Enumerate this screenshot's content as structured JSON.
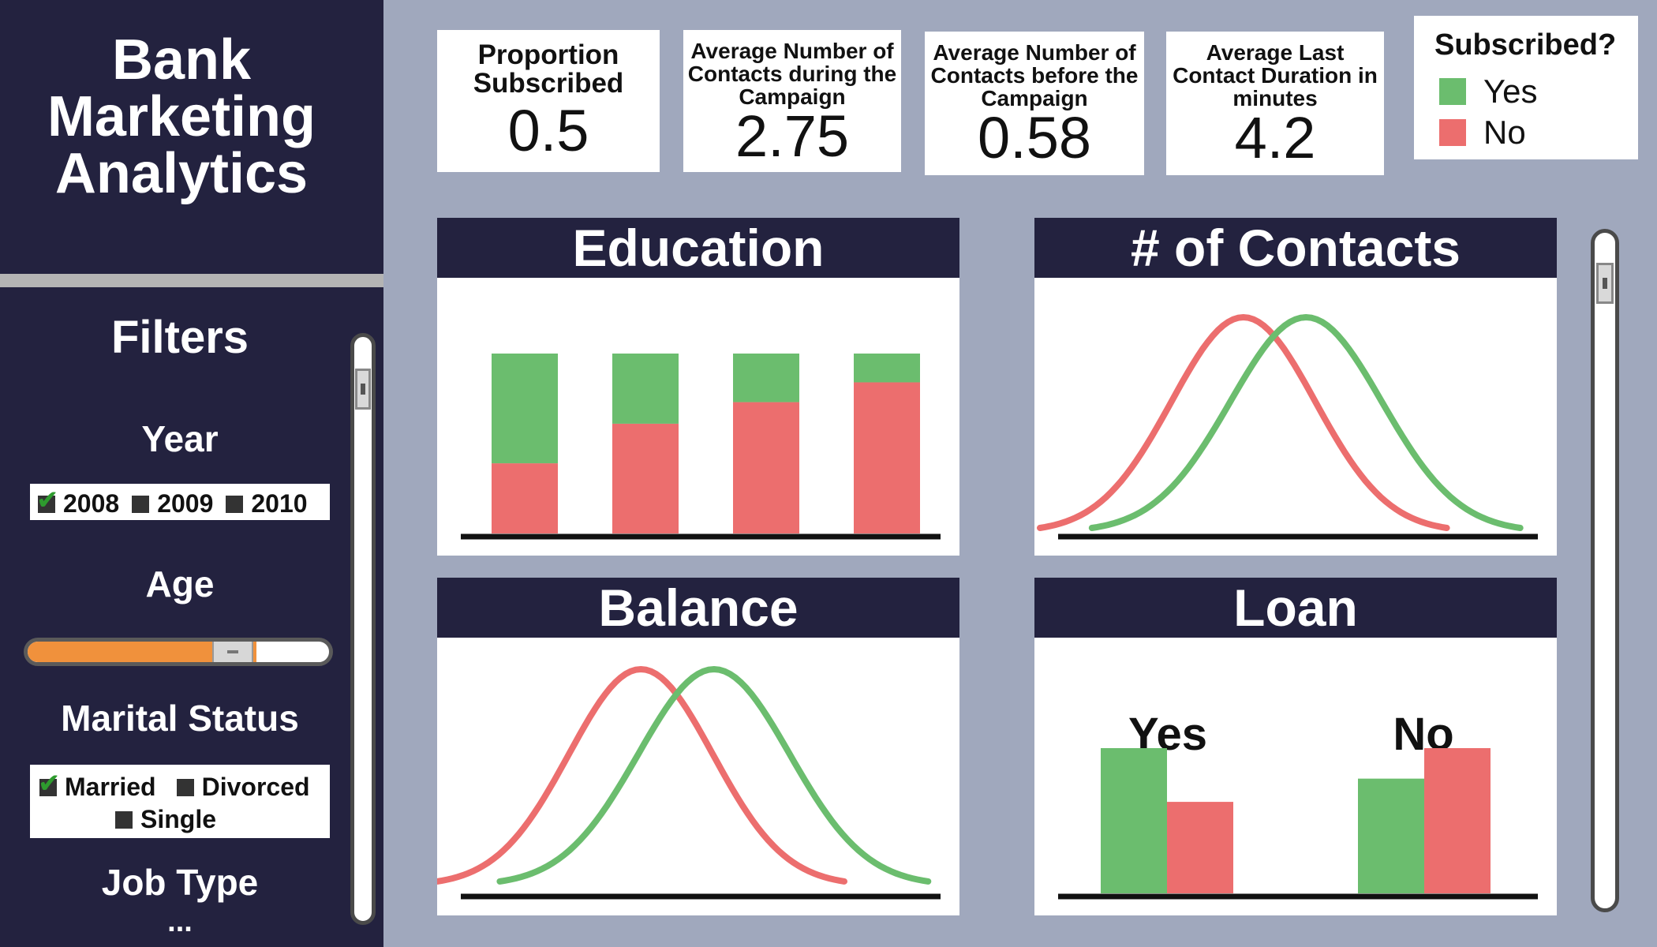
{
  "app_title": "Bank Marketing Analytics",
  "filters": {
    "heading": "Filters",
    "year": {
      "label": "Year",
      "options": [
        {
          "label": "2008",
          "checked": true
        },
        {
          "label": "2009",
          "checked": false
        },
        {
          "label": "2010",
          "checked": false
        }
      ]
    },
    "age": {
      "label": "Age",
      "level_fraction": 0.76
    },
    "marital_status": {
      "label": "Marital Status",
      "options": [
        {
          "label": "Married",
          "checked": true
        },
        {
          "label": "Divorced",
          "checked": false
        },
        {
          "label": "Single",
          "checked": false
        }
      ]
    },
    "job_type": {
      "label": "Job Type",
      "more": "..."
    }
  },
  "kpis": [
    {
      "label": "Proportion Subscribed",
      "value": "0.5"
    },
    {
      "label": "Average Number of Contacts during the Campaign",
      "value": "2.75"
    },
    {
      "label": "Average Number of Contacts before the Campaign",
      "value": "0.58"
    },
    {
      "label": "Average Last Contact Duration in minutes",
      "value": "4.2"
    }
  ],
  "legend": {
    "title": "Subscribed?",
    "items": [
      {
        "label": "Yes",
        "color": "#6bbd6e"
      },
      {
        "label": "No",
        "color": "#ec6e6e"
      }
    ]
  },
  "colors": {
    "yes": "#6bbd6e",
    "no": "#ec6e6e",
    "navy": "#23223f",
    "accent": "#f0913c"
  },
  "panels": {
    "education": "Education",
    "contacts": "# of Contacts",
    "balance": "Balance",
    "loan": "Loan"
  },
  "chart_data": [
    {
      "type": "bar",
      "title": "Education",
      "stacked": true,
      "categories": [
        "",
        "",
        "",
        ""
      ],
      "series": [
        {
          "name": "No",
          "values": [
            0.39,
            0.61,
            0.73,
            0.84
          ]
        },
        {
          "name": "Yes",
          "values": [
            0.61,
            0.39,
            0.27,
            0.16
          ]
        }
      ],
      "ylim": [
        0,
        1
      ]
    },
    {
      "type": "line",
      "title": "# of Contacts",
      "series": [
        {
          "name": "No",
          "peak_x": 0.4,
          "spread": 0.19
        },
        {
          "name": "Yes",
          "peak_x": 0.52,
          "spread": 0.2
        }
      ]
    },
    {
      "type": "line",
      "title": "Balance",
      "series": [
        {
          "name": "No",
          "peak_x": 0.39,
          "spread": 0.19
        },
        {
          "name": "Yes",
          "peak_x": 0.53,
          "spread": 0.2
        }
      ]
    },
    {
      "type": "bar",
      "title": "Loan",
      "categories": [
        "Yes",
        "No"
      ],
      "series": [
        {
          "name": "Yes",
          "values": [
            1.0,
            0.79
          ]
        },
        {
          "name": "No",
          "values": [
            0.63,
            1.0
          ]
        }
      ]
    }
  ]
}
